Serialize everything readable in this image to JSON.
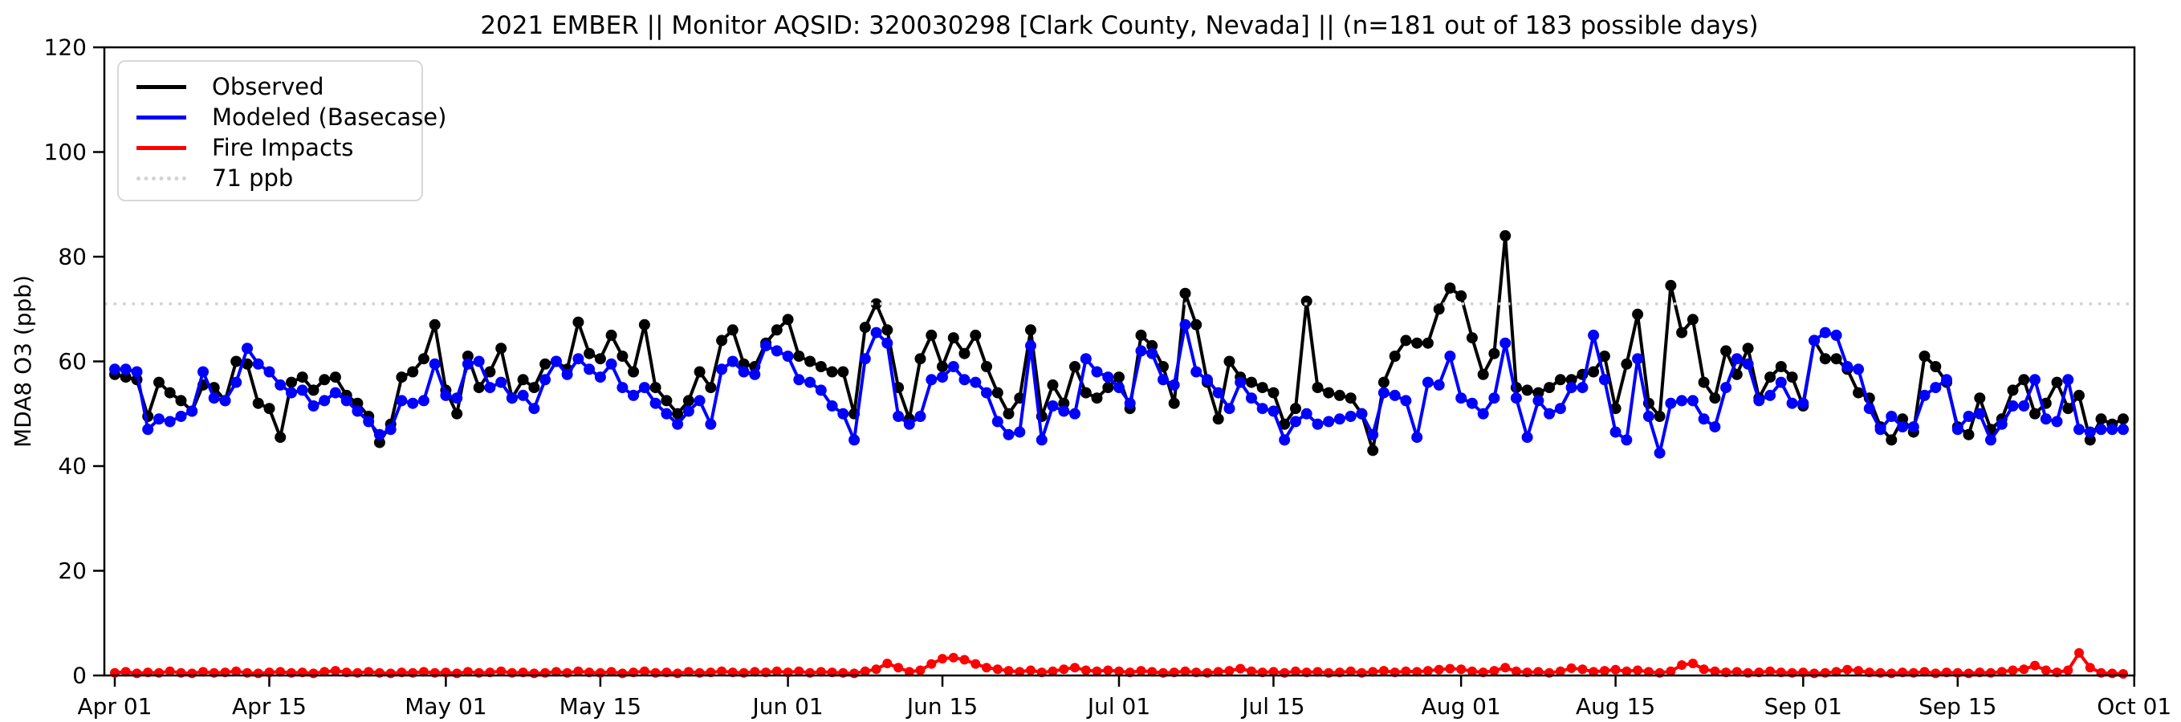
{
  "title": "2021 EMBER || Monitor AQSID: 320030298 [Clark County, Nevada] || (n=181 out of 183 possible days)",
  "legend": {
    "items": [
      {
        "label": "Observed",
        "color": "#000000",
        "style": "solid"
      },
      {
        "label": "Modeled (Basecase)",
        "color": "#0000ff",
        "style": "solid"
      },
      {
        "label": "Fire Impacts",
        "color": "#ff0000",
        "style": "solid"
      },
      {
        "label": "71 ppb",
        "color": "#d3d3d3",
        "style": "dotted"
      }
    ]
  },
  "chart_data": {
    "type": "line",
    "title": "2021 EMBER || Monitor AQSID: 320030298 [Clark County, Nevada] || (n=181 out of 183 possible days)",
    "xlabel": "",
    "ylabel": "MDA8 O3 (ppb)",
    "ylim": [
      0,
      120
    ],
    "y_ticks": [
      0,
      20,
      40,
      60,
      80,
      100,
      120
    ],
    "x_range_days": 183,
    "x_start_label": "Apr 01",
    "x_end_label": "Oct 01",
    "x_tick_labels": [
      "Apr 01",
      "Apr 15",
      "May 01",
      "May 15",
      "Jun 01",
      "Jun 15",
      "Jul 01",
      "Jul 15",
      "Aug 01",
      "Aug 15",
      "Sep 01",
      "Sep 15",
      "Oct 01"
    ],
    "x_tick_day_index": [
      0,
      14,
      30,
      44,
      61,
      75,
      91,
      105,
      122,
      136,
      153,
      167,
      183
    ],
    "grid": false,
    "legend_position": "upper left",
    "threshold": {
      "value": 71,
      "label": "71 ppb",
      "color": "#d3d3d3",
      "style": "dotted"
    },
    "series": [
      {
        "name": "Observed",
        "color": "#000000",
        "marker": "circle",
        "values": [
          57.5,
          57,
          56.5,
          49.5,
          56,
          54,
          52.5,
          50.5,
          55.5,
          55,
          52.5,
          60,
          59.5,
          52,
          51,
          45.5,
          56,
          57,
          54.5,
          56.5,
          57,
          53.5,
          52,
          49.5,
          44.5,
          48,
          57,
          58,
          60.5,
          67,
          54.5,
          50,
          61,
          55,
          58,
          62.5,
          53,
          56.5,
          55,
          59.5,
          60,
          58.5,
          67.5,
          61.5,
          60.5,
          65,
          61,
          58,
          67,
          55,
          52.5,
          50,
          52.5,
          58,
          55,
          64,
          66,
          59.5,
          59,
          63.5,
          66,
          68,
          61,
          60,
          59,
          58,
          58,
          50,
          66.5,
          71,
          66,
          55,
          49,
          60.5,
          65,
          59,
          64.5,
          61.5,
          65,
          59,
          54,
          50,
          53,
          66,
          49.5,
          55.5,
          52,
          59,
          54,
          53,
          55,
          57,
          51,
          65,
          63,
          59,
          52,
          73,
          67,
          56,
          49,
          60,
          57,
          56,
          55,
          54,
          48,
          51,
          71.5,
          55,
          54,
          53.5,
          53,
          50,
          43,
          56,
          61,
          64,
          63.5,
          63.5,
          70,
          74,
          72.5,
          64.5,
          57.5,
          61.5,
          84,
          55,
          54.5,
          54,
          55,
          56.5,
          56.5,
          57.5,
          58,
          61,
          51,
          59.5,
          69,
          52,
          49.5,
          74.5,
          65.5,
          68,
          56,
          53,
          62,
          57.5,
          62.5,
          53,
          57,
          59,
          57,
          51.5,
          64,
          60.5,
          60.5,
          58.5,
          54,
          53,
          47.5,
          45,
          49,
          46.5,
          61,
          59,
          56,
          47.5,
          46,
          53,
          47,
          49,
          54.5,
          56.5,
          50,
          52,
          56,
          51,
          53.5,
          45,
          49,
          48,
          49
        ]
      },
      {
        "name": "Modeled (Basecase)",
        "color": "#0000ff",
        "marker": "circle",
        "values": [
          58.5,
          58.5,
          58,
          47,
          49,
          48.5,
          49.5,
          50.5,
          58,
          53,
          52.5,
          56,
          62.5,
          59.5,
          58,
          55.5,
          54,
          54.5,
          51.5,
          52.5,
          54,
          52.5,
          50.5,
          48.5,
          46,
          47,
          52.5,
          52,
          52.5,
          59.5,
          53.5,
          53,
          59.5,
          60,
          55,
          56,
          53,
          53.5,
          51,
          56.5,
          60,
          57.5,
          60.5,
          58.5,
          57,
          59.5,
          55,
          53.5,
          55,
          52,
          50,
          48,
          50.5,
          52.5,
          48,
          58.5,
          60,
          58,
          57.5,
          63,
          62,
          61,
          56.5,
          56,
          54.5,
          51.5,
          50,
          45,
          60.5,
          65.5,
          63.5,
          49.5,
          48,
          49.5,
          56.5,
          57,
          59,
          56.5,
          56,
          54,
          48.5,
          46,
          46.5,
          63,
          45,
          51.5,
          50.5,
          50,
          60.5,
          58,
          57,
          55,
          52,
          62,
          61.5,
          56.5,
          55.5,
          67,
          58,
          56.5,
          54,
          51,
          56,
          53,
          51,
          50.5,
          45,
          48.5,
          50,
          48,
          48.5,
          49,
          49.5,
          50,
          46,
          54,
          53.5,
          52.5,
          45.5,
          56,
          55.5,
          61,
          53,
          52,
          50,
          53,
          63.5,
          53,
          45.5,
          52.5,
          50,
          51,
          55,
          55,
          65,
          56.5,
          46.5,
          45,
          60.5,
          49.5,
          42.5,
          52,
          52.5,
          52.5,
          49,
          47.5,
          55,
          60.5,
          59.5,
          52.5,
          53.5,
          56,
          52,
          52,
          64,
          65.5,
          65,
          59,
          58.5,
          51,
          47,
          49.5,
          47.5,
          47.5,
          53.5,
          55,
          56.5,
          47,
          49.5,
          50,
          45,
          48,
          51.5,
          51.5,
          56.5,
          49,
          48.5,
          56.5,
          47,
          46.5,
          47,
          47,
          47
        ]
      },
      {
        "name": "Fire Impacts",
        "color": "#ff0000",
        "marker": "circle",
        "values": [
          0.5,
          0.7,
          0.4,
          0.6,
          0.5,
          0.8,
          0.5,
          0.4,
          0.7,
          0.5,
          0.6,
          0.8,
          0.5,
          0.4,
          0.6,
          0.7,
          0.5,
          0.6,
          0.4,
          0.7,
          0.9,
          0.6,
          0.5,
          0.7,
          0.5,
          0.4,
          0.6,
          0.5,
          0.7,
          0.5,
          0.6,
          0.4,
          0.7,
          0.5,
          0.6,
          0.8,
          0.5,
          0.6,
          0.4,
          0.5,
          0.7,
          0.5,
          0.8,
          0.6,
          0.5,
          0.7,
          0.4,
          0.6,
          0.8,
          0.5,
          0.6,
          0.4,
          0.7,
          0.5,
          0.6,
          0.8,
          0.6,
          0.5,
          0.7,
          0.6,
          0.8,
          0.6,
          0.8,
          0.5,
          0.7,
          0.6,
          0.5,
          0.4,
          0.8,
          1.2,
          2.3,
          1.5,
          0.7,
          1.0,
          2.2,
          3.2,
          3.4,
          3.0,
          2.2,
          1.5,
          1.2,
          0.9,
          0.7,
          1.0,
          0.6,
          0.8,
          1.2,
          1.5,
          1.0,
          0.8,
          1.0,
          0.8,
          0.6,
          0.9,
          0.7,
          0.5,
          0.6,
          0.8,
          0.6,
          0.5,
          0.7,
          0.9,
          1.3,
          0.8,
          0.6,
          0.7,
          0.5,
          0.8,
          0.6,
          0.7,
          0.5,
          0.6,
          0.8,
          0.5,
          0.7,
          0.9,
          0.6,
          0.8,
          0.7,
          0.9,
          1.1,
          1.3,
          1.2,
          0.8,
          0.6,
          0.9,
          1.5,
          0.8,
          0.6,
          0.7,
          0.5,
          0.8,
          1.4,
          1.2,
          0.7,
          0.9,
          1.1,
          0.8,
          1.0,
          0.7,
          0.5,
          0.8,
          2.0,
          2.3,
          1.2,
          0.8,
          0.6,
          0.7,
          0.5,
          0.6,
          0.8,
          0.6,
          0.5,
          0.6,
          0.4,
          0.5,
          0.7,
          1.1,
          0.9,
          0.6,
          0.5,
          0.4,
          0.6,
          0.5,
          0.7,
          0.4,
          0.6,
          0.5,
          0.4,
          0.6,
          0.5,
          0.7,
          1.0,
          1.2,
          1.9,
          1.0,
          0.6,
          1.0,
          4.3,
          1.5,
          0.5,
          0.4,
          0.3
        ]
      }
    ]
  }
}
